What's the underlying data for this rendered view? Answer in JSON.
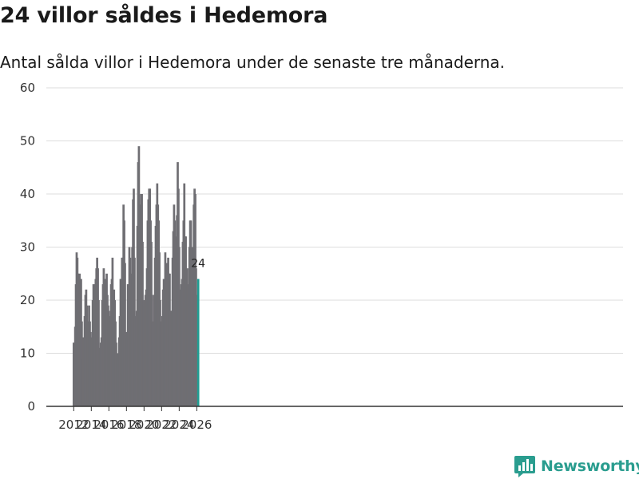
{
  "header": {
    "title": "24 villor såldes i Hedemora",
    "subtitle": "Antal sålda villor i Hedemora under de senaste tre månaderna."
  },
  "brand": {
    "name": "Newsworthy",
    "color": "#2a9d8f"
  },
  "colors": {
    "bar": "#6f6e73",
    "highlight": "#1f9e93",
    "grid": "#dddddd",
    "axis": "#333333"
  },
  "chart_data": {
    "type": "bar",
    "title": "24 villor såldes i Hedemora",
    "xlabel": "",
    "ylabel": "",
    "ylim": [
      0,
      60
    ],
    "yticks": [
      0,
      10,
      20,
      30,
      40,
      50,
      60
    ],
    "xticks": [
      "2012",
      "2014",
      "2016",
      "2018",
      "2020",
      "2022",
      "2024",
      "2026"
    ],
    "start": {
      "year": 2012,
      "month": 1
    },
    "values": [
      12,
      11,
      15,
      23,
      29,
      28,
      25,
      20,
      25,
      24,
      24,
      16,
      13,
      9,
      13,
      17,
      21,
      22,
      19,
      16,
      16,
      19,
      16,
      14,
      9,
      13,
      20,
      23,
      22,
      23,
      24,
      26,
      28,
      26,
      20,
      11,
      11,
      12,
      13,
      20,
      23,
      26,
      20,
      24,
      24,
      25,
      21,
      19,
      18,
      17,
      16,
      23,
      24,
      28,
      21,
      22,
      20,
      16,
      12,
      10,
      9,
      10,
      13,
      17,
      24,
      24,
      28,
      28,
      38,
      35,
      27,
      13,
      14,
      13,
      23,
      23,
      30,
      28,
      25,
      22,
      30,
      39,
      41,
      28,
      17,
      12,
      18,
      34,
      46,
      49,
      38,
      38,
      40,
      40,
      31,
      20,
      20,
      19,
      21,
      22,
      26,
      35,
      39,
      41,
      41,
      35,
      31,
      21,
      16,
      12,
      21,
      28,
      34,
      38,
      42,
      38,
      35,
      29,
      20,
      16,
      16,
      17,
      22,
      24,
      20,
      29,
      26,
      27,
      22,
      28,
      25,
      25,
      17,
      18,
      18,
      28,
      33,
      38,
      35,
      32,
      30,
      36,
      46,
      41,
      30,
      22,
      21,
      23,
      24,
      31,
      35,
      42,
      32,
      32,
      23,
      26,
      21,
      23,
      30,
      35,
      35,
      30,
      28,
      30,
      38,
      41,
      40,
      26,
      21,
      15,
      24
    ],
    "highlight": {
      "label": "24",
      "value": 24
    }
  }
}
